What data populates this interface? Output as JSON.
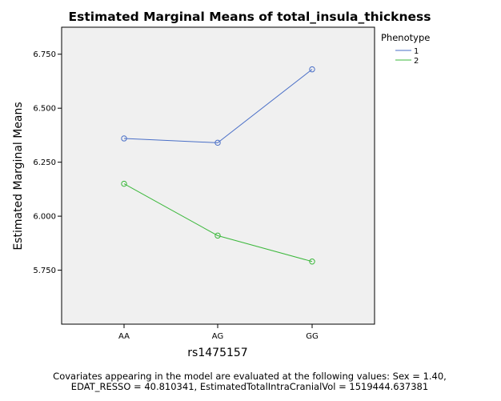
{
  "chart_data": {
    "type": "line",
    "title": "Estimated Marginal Means of total_insula_thickness",
    "xlabel": "rs1475157",
    "ylabel": "Estimated Marginal Means",
    "categories": [
      "AA",
      "AG",
      "GG"
    ],
    "ylim": [
      5.5,
      6.875
    ],
    "yticks": [
      5.75,
      6.0,
      6.25,
      6.5,
      6.75
    ],
    "ytick_labels": [
      "5.750",
      "6.000",
      "6.250",
      "6.500",
      "6.750"
    ],
    "grid": false,
    "legend": {
      "title": "Phenotype",
      "placement": "right"
    },
    "series": [
      {
        "name": "1",
        "color": "#4a6fc7",
        "values": [
          6.36,
          6.34,
          6.68
        ]
      },
      {
        "name": "2",
        "color": "#3cb83c",
        "values": [
          6.15,
          5.91,
          5.79
        ]
      }
    ],
    "plot_background": "#f0f0f0",
    "footnote": [
      "Covariates appearing in the model are evaluated at the following values: Sex = 1.40,",
      "EDAT_RESSO = 40.810341, EstimatedTotalIntraCranialVol = 1519444.637381"
    ]
  }
}
